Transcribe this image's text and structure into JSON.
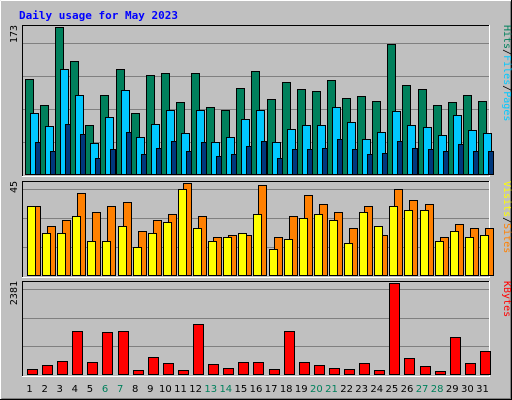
{
  "chart_data": {
    "type": "bar",
    "title": "Daily usage for May 2023",
    "days": [
      "1",
      "2",
      "3",
      "4",
      "5",
      "6",
      "7",
      "8",
      "9",
      "10",
      "11",
      "12",
      "13",
      "14",
      "15",
      "16",
      "17",
      "18",
      "19",
      "20",
      "21",
      "22",
      "23",
      "24",
      "25",
      "26",
      "27",
      "28",
      "29",
      "30",
      "31"
    ],
    "weekend_days": [
      "6",
      "7",
      "13",
      "14",
      "20",
      "21",
      "27",
      "28"
    ],
    "colors": {
      "background": "#c0c0c0",
      "hits": "#00805c",
      "files": "#00c8ff",
      "pages": "#00387c",
      "visits": "#ffff00",
      "sites": "#ff8000",
      "kbytes": "#ff0000",
      "title": "#0000ff",
      "weekend_label": "#00805c"
    },
    "panels": [
      {
        "id": "hits-panel",
        "max_label": "173",
        "ylim": [
          0,
          173
        ],
        "legend": [
          "Pages",
          "/",
          "Files",
          "/",
          "Hits"
        ],
        "legend_colors": [
          "#00c8ff",
          "#000000",
          "#00c8ff",
          "#000000",
          "#00805c"
        ],
        "series": [
          {
            "name": "Hits",
            "values": [
              112,
              82,
              173,
              133,
              59,
              93,
              124,
              72,
              117,
              119,
              85,
              119,
              79,
              76,
              102,
              122,
              89,
              109,
              101,
              98,
              111,
              90,
              92,
              87,
              153,
              105,
              100,
              82,
              85,
              93,
              87
            ]
          },
          {
            "name": "Files",
            "values": [
              72,
              57,
              124,
              94,
              37,
              68,
              99,
              44,
              60,
              76,
              49,
              76,
              38,
              44,
              65,
              76,
              39,
              54,
              59,
              58,
              80,
              62,
              42,
              50,
              75,
              58,
              56,
              47,
              70,
              53,
              49
            ]
          },
          {
            "name": "Pages",
            "values": [
              38,
              28,
              60,
              48,
              20,
              30,
              50,
              25,
              32,
              40,
              28,
              38,
              22,
              25,
              34,
              40,
              20,
              30,
              30,
              32,
              42,
              30,
              24,
              26,
              40,
              32,
              30,
              28,
              36,
              28,
              28
            ]
          }
        ]
      },
      {
        "id": "visits-panel",
        "max_label": "45",
        "ylim": [
          0,
          45
        ],
        "legend": [
          "Sites",
          "/",
          "Visits"
        ],
        "legend_colors": [
          "#ff8000",
          "#000000",
          "#ffff00"
        ],
        "series": [
          {
            "name": "Sites",
            "values": [
              34,
              24,
              27,
              40,
              31,
              34,
              36,
              22,
              27,
              30,
              45,
              29,
              19,
              20,
              20,
              44,
              19,
              29,
              39,
              35,
              31,
              23,
              34,
              20,
              42,
              37,
              35,
              19,
              25,
              23,
              23
            ]
          },
          {
            "name": "Visits",
            "values": [
              34,
              21,
              21,
              29,
              17,
              17,
              24,
              14,
              21,
              26,
              42,
              23,
              17,
              19,
              21,
              30,
              13,
              18,
              28,
              30,
              27,
              16,
              31,
              24,
              34,
              32,
              32,
              17,
              22,
              19,
              20
            ]
          }
        ]
      },
      {
        "id": "kbytes-panel",
        "max_label": "2381",
        "ylim": [
          0,
          2381
        ],
        "legend": [
          "KBytes"
        ],
        "legend_colors": [
          "#ff0000"
        ],
        "series": [
          {
            "name": "KBytes",
            "values": [
              150,
              250,
              360,
              1140,
              340,
              1120,
              1140,
              120,
              470,
              320,
              120,
              1320,
              280,
              180,
              340,
              340,
              160,
              1140,
              330,
              260,
              190,
              160,
              300,
              130,
              2381,
              450,
              230,
              110,
              990,
              320,
              630
            ]
          }
        ]
      }
    ]
  }
}
